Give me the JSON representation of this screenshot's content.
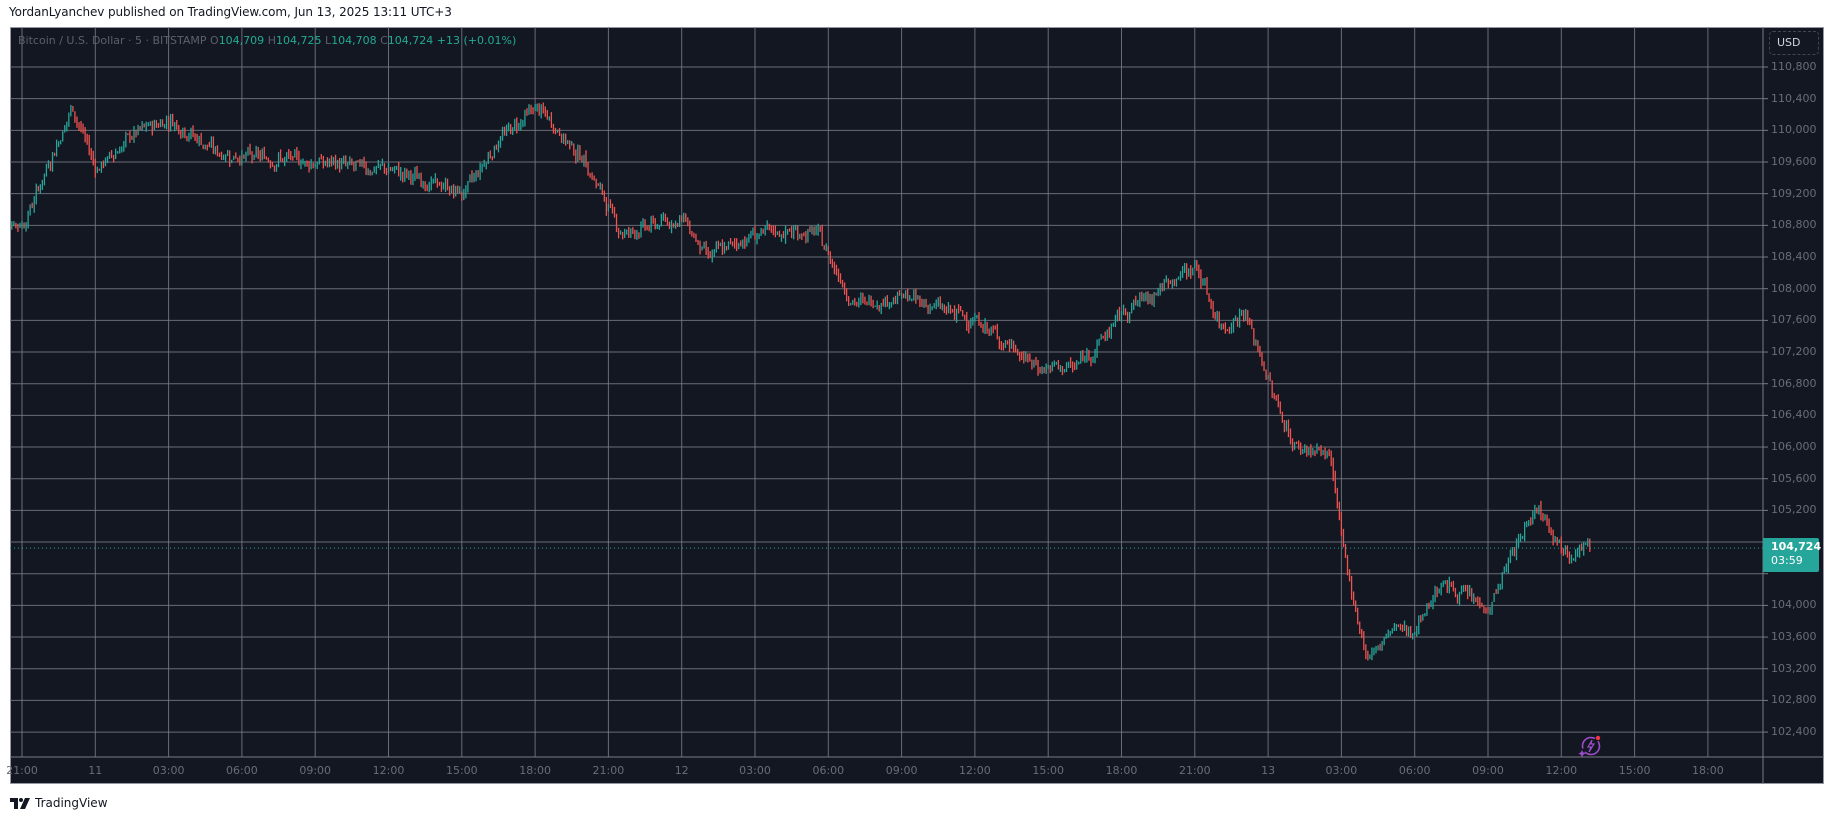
{
  "header": {
    "publisher_line": "YordanLyanchev published on TradingView.com, Jun 13, 2025 13:11 UTC+3"
  },
  "legend": {
    "symbol": "Bitcoin / U.S. Dollar · 5 · BITSTAMP",
    "open_label": "O",
    "open": "104,709",
    "high_label": "H",
    "high": "104,725",
    "low_label": "L",
    "low": "104,708",
    "close_label": "C",
    "close": "104,724",
    "change": "+13 (+0.01%)"
  },
  "price_axis": {
    "currency_button": "USD",
    "last_price": "104,724",
    "countdown": "03:59"
  },
  "footer": {
    "brand": "TradingView"
  },
  "colors": {
    "background": "#131722",
    "grid": "#787b86",
    "up": "#26a69a",
    "down": "#ef5350",
    "last_price_line": "#26a69a",
    "axis_text": "#6a6d78"
  },
  "chart_data": {
    "type": "candlestick",
    "title": "Bitcoin / U.S. Dollar · 5 · BITSTAMP",
    "xlabel": "",
    "ylabel": "USD",
    "ylim": [
      102100,
      111100
    ],
    "grid": true,
    "y_ticks": [
      110800,
      110400,
      110000,
      109600,
      109200,
      108800,
      108400,
      108000,
      107600,
      107200,
      106800,
      106400,
      106000,
      105600,
      105200,
      104800,
      104400,
      104000,
      103600,
      103200,
      102800,
      102400
    ],
    "y_tick_labels": [
      "110,800",
      "110,400",
      "110,000",
      "109,600",
      "109,200",
      "108,800",
      "108,400",
      "108,000",
      "107,600",
      "107,200",
      "106,800",
      "106,400",
      "106,000",
      "105,600",
      "105,200",
      "104,800",
      "104,400",
      "104,000",
      "103,600",
      "103,200",
      "102,800",
      "102,400"
    ],
    "x_tick_labels": [
      "21:00",
      "11",
      "03:00",
      "06:00",
      "09:00",
      "12:00",
      "15:00",
      "18:00",
      "21:00",
      "12",
      "03:00",
      "06:00",
      "09:00",
      "12:00",
      "15:00",
      "18:00",
      "21:00",
      "13",
      "03:00",
      "06:00",
      "09:00",
      "12:00",
      "15:00",
      "18:00"
    ],
    "interval": "5m",
    "last_close": 104724,
    "path_keypoints": [
      {
        "t": "Jun 10 20:00",
        "price": 108900
      },
      {
        "t": "Jun 10 21:00",
        "price": 108800
      },
      {
        "t": "Jun 10 23:00",
        "price": 110300
      },
      {
        "t": "Jun 11 00:00",
        "price": 109500
      },
      {
        "t": "Jun 11 01:30",
        "price": 109950
      },
      {
        "t": "Jun 11 03:00",
        "price": 110150
      },
      {
        "t": "Jun 11 05:00",
        "price": 109700
      },
      {
        "t": "Jun 11 09:00",
        "price": 109600
      },
      {
        "t": "Jun 11 12:00",
        "price": 109500
      },
      {
        "t": "Jun 11 15:00",
        "price": 109200
      },
      {
        "t": "Jun 11 16:30",
        "price": 109900
      },
      {
        "t": "Jun 11 18:00",
        "price": 110300
      },
      {
        "t": "Jun 11 20:00",
        "price": 109600
      },
      {
        "t": "Jun 11 21:30",
        "price": 108700
      },
      {
        "t": "Jun 12 00:00",
        "price": 108900
      },
      {
        "t": "Jun 12 01:00",
        "price": 108400
      },
      {
        "t": "Jun 12 03:00",
        "price": 108700
      },
      {
        "t": "Jun 12 05:30",
        "price": 108700
      },
      {
        "t": "Jun 12 07:00",
        "price": 107800
      },
      {
        "t": "Jun 12 09:00",
        "price": 107900
      },
      {
        "t": "Jun 12 12:00",
        "price": 107600
      },
      {
        "t": "Jun 12 14:30",
        "price": 107000
      },
      {
        "t": "Jun 12 16:00",
        "price": 107000
      },
      {
        "t": "Jun 12 17:00",
        "price": 107300
      },
      {
        "t": "Jun 12 18:00",
        "price": 107700
      },
      {
        "t": "Jun 12 21:00",
        "price": 108300
      },
      {
        "t": "Jun 12 22:00",
        "price": 107500
      },
      {
        "t": "Jun 12 23:00",
        "price": 107700
      },
      {
        "t": "Jun 13 00:00",
        "price": 106800
      },
      {
        "t": "Jun 13 01:00",
        "price": 106000
      },
      {
        "t": "Jun 13 02:30",
        "price": 105900
      },
      {
        "t": "Jun 13 03:00",
        "price": 104700
      },
      {
        "t": "Jun 13 04:00",
        "price": 103300
      },
      {
        "t": "Jun 13 05:00",
        "price": 103700
      },
      {
        "t": "Jun 13 06:00",
        "price": 103700
      },
      {
        "t": "Jun 13 07:00",
        "price": 104300
      },
      {
        "t": "Jun 13 09:00",
        "price": 103950
      },
      {
        "t": "Jun 13 10:00",
        "price": 104700
      },
      {
        "t": "Jun 13 11:00",
        "price": 105300
      },
      {
        "t": "Jun 13 12:00",
        "price": 104700
      },
      {
        "t": "Jun 13 13:10",
        "price": 104724
      }
    ]
  }
}
